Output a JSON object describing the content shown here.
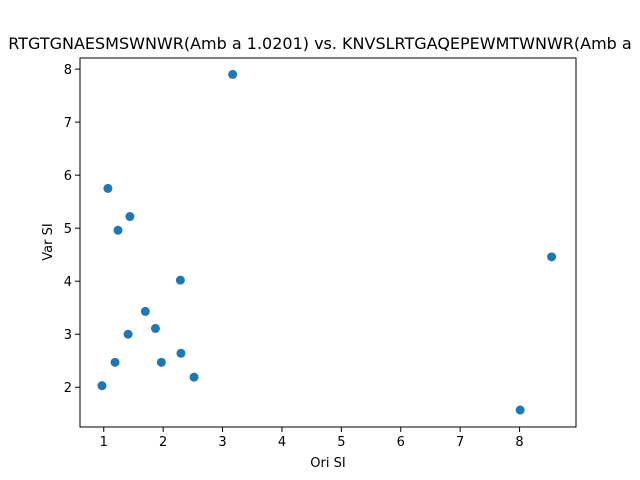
{
  "chart_data": {
    "type": "scatter",
    "title": "RTGTGNAESMSWNWR(Amb a 1.0201) vs. KNVSLRTGAQEPEWMTWNWR(Amb a",
    "xlabel": "Ori SI",
    "ylabel": "Var SI",
    "xlim": [
      0.6,
      8.95
    ],
    "ylim": [
      1.25,
      8.21
    ],
    "x_ticks": [
      1,
      2,
      3,
      4,
      5,
      6,
      7,
      8
    ],
    "x_tick_labels": [
      "1",
      "2",
      "3",
      "4",
      "5",
      "6",
      "7",
      "8"
    ],
    "y_ticks": [
      2,
      3,
      4,
      5,
      6,
      7,
      8
    ],
    "y_tick_labels": [
      "2",
      "3",
      "4",
      "5",
      "6",
      "7",
      "8"
    ],
    "grid": false,
    "marker_color": "#1f77b4",
    "points": [
      {
        "x": 3.17,
        "y": 7.9
      },
      {
        "x": 1.07,
        "y": 5.75
      },
      {
        "x": 1.44,
        "y": 5.22
      },
      {
        "x": 1.24,
        "y": 4.96
      },
      {
        "x": 8.54,
        "y": 4.46
      },
      {
        "x": 2.29,
        "y": 4.02
      },
      {
        "x": 1.7,
        "y": 3.43
      },
      {
        "x": 1.87,
        "y": 3.11
      },
      {
        "x": 1.41,
        "y": 3.0
      },
      {
        "x": 2.3,
        "y": 2.64
      },
      {
        "x": 1.19,
        "y": 2.47
      },
      {
        "x": 1.97,
        "y": 2.47
      },
      {
        "x": 2.52,
        "y": 2.19
      },
      {
        "x": 0.97,
        "y": 2.03
      },
      {
        "x": 8.01,
        "y": 1.57
      }
    ]
  }
}
